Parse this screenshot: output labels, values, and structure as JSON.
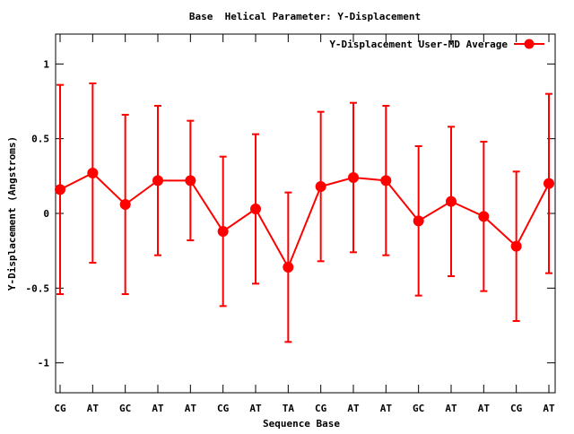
{
  "chart_data": {
    "type": "line",
    "title": "Base  Helical Parameter: Y-Displacement",
    "xlabel": "Sequence Base",
    "ylabel": "Y-Displacement (Angstroms)",
    "categories": [
      "CG",
      "AT",
      "GC",
      "AT",
      "AT",
      "CG",
      "AT",
      "TA",
      "CG",
      "AT",
      "AT",
      "GC",
      "AT",
      "AT",
      "CG",
      "AT"
    ],
    "series": [
      {
        "name": "Y-Displacement User-MD Average",
        "color": "#ff0000",
        "values": [
          0.16,
          0.27,
          0.06,
          0.22,
          0.22,
          -0.12,
          0.03,
          -0.36,
          0.18,
          0.24,
          0.22,
          -0.05,
          0.08,
          -0.02,
          -0.22,
          0.2
        ],
        "error_low": [
          -0.54,
          -0.33,
          -0.54,
          -0.28,
          -0.18,
          -0.62,
          -0.47,
          -0.86,
          -0.32,
          -0.26,
          -0.28,
          -0.55,
          -0.42,
          -0.52,
          -0.72,
          -0.4
        ],
        "error_high": [
          0.86,
          0.87,
          0.66,
          0.72,
          0.62,
          0.38,
          0.53,
          0.14,
          0.68,
          0.74,
          0.72,
          0.45,
          0.58,
          0.48,
          0.28,
          0.8
        ]
      }
    ],
    "ylim": [
      -1.2,
      1.2
    ],
    "yticks": [
      {
        "value": -1,
        "label": "-1"
      },
      {
        "value": -0.5,
        "label": "-0.5"
      },
      {
        "value": 0,
        "label": "0"
      },
      {
        "value": 0.5,
        "label": "0.5"
      },
      {
        "value": 1,
        "label": "1"
      }
    ],
    "grid": false,
    "legend_position": "top-right"
  }
}
